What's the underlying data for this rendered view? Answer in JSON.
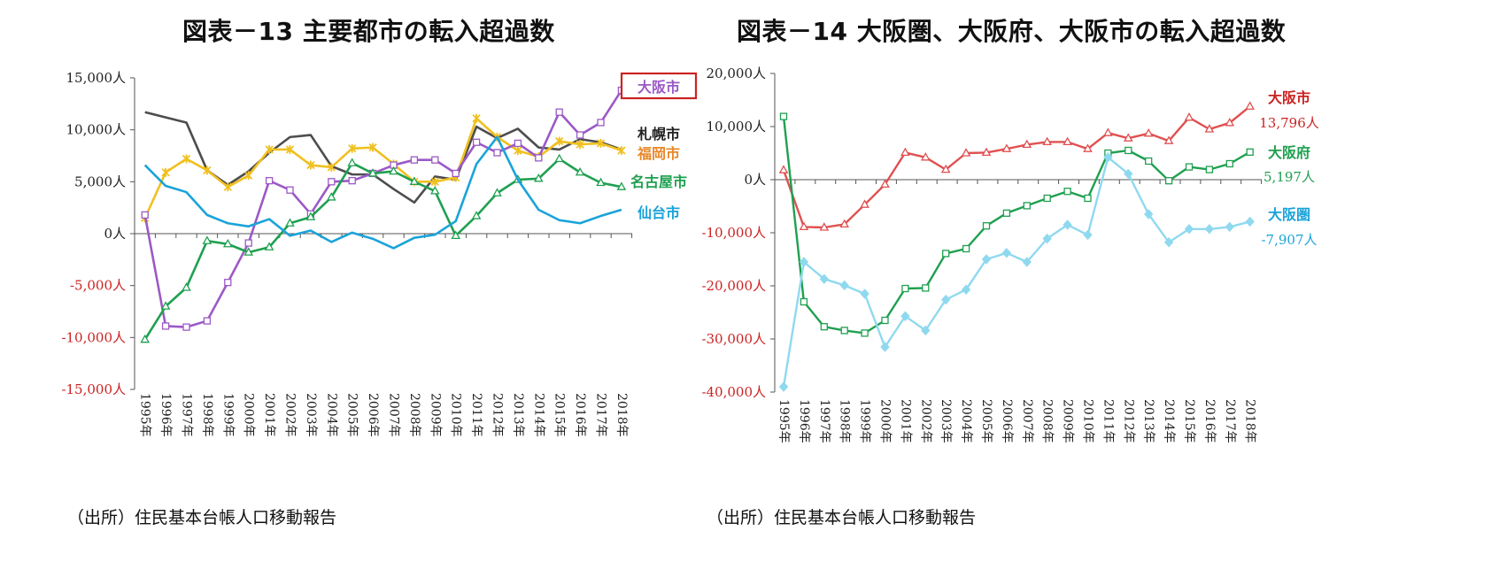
{
  "chart_data": [
    {
      "type": "line",
      "title": "図表－13 主要都市の転入超過数",
      "source": "（出所）住民基本台帳人口移動報告",
      "x": [
        "1995年",
        "1996年",
        "1997年",
        "1998年",
        "1999年",
        "2000年",
        "2001年",
        "2002年",
        "2003年",
        "2004年",
        "2005年",
        "2006年",
        "2007年",
        "2008年",
        "2009年",
        "2010年",
        "2011年",
        "2012年",
        "2013年",
        "2014年",
        "2015年",
        "2016年",
        "2017年",
        "2018年"
      ],
      "ylim": [
        -15000,
        15000
      ],
      "yticks": [
        {
          "value": 15000,
          "label": "15,000人",
          "color": "#222222"
        },
        {
          "value": 10000,
          "label": "10,000人",
          "color": "#222222"
        },
        {
          "value": 5000,
          "label": "5,000人",
          "color": "#222222"
        },
        {
          "value": 0,
          "label": "0人",
          "color": "#222222"
        },
        {
          "value": -5000,
          "label": "-5,000人",
          "color": "#cc2222"
        },
        {
          "value": -10000,
          "label": "-10,000人",
          "color": "#cc2222"
        },
        {
          "value": -15000,
          "label": "-15,000人",
          "color": "#cc2222"
        }
      ],
      "grid": false,
      "series": [
        {
          "name": "札幌市",
          "color": "#4d4d4d",
          "marker": "none",
          "values": [
            11700,
            11200,
            10700,
            6100,
            4700,
            6000,
            7800,
            9300,
            9500,
            6500,
            5700,
            5700,
            4300,
            3000,
            5500,
            5200,
            10300,
            9200,
            10100,
            8300,
            8100,
            9100,
            8800,
            8100
          ]
        },
        {
          "name": "福岡市",
          "color": "#f0c020",
          "marker": "star",
          "values": [
            1500,
            5900,
            7200,
            6100,
            4500,
            5600,
            8100,
            8100,
            6600,
            6400,
            8200,
            8300,
            6700,
            5000,
            5000,
            5400,
            11100,
            9300,
            8000,
            7400,
            8900,
            8600,
            8700,
            8000
          ]
        },
        {
          "name": "大阪市",
          "color": "#9b59c6",
          "marker": "square",
          "values": [
            1800,
            -8900,
            -9000,
            -8400,
            -4700,
            -900,
            5100,
            4200,
            1900,
            5000,
            5100,
            5800,
            6600,
            7100,
            7100,
            5800,
            8800,
            7800,
            8700,
            7300,
            11700,
            9500,
            10700,
            13800
          ]
        },
        {
          "name": "名古屋市",
          "color": "#1fa050",
          "marker": "triangle",
          "values": [
            -10200,
            -7000,
            -5200,
            -700,
            -1000,
            -1800,
            -1300,
            1000,
            1600,
            3500,
            6800,
            5800,
            6000,
            5000,
            4100,
            -200,
            1700,
            3900,
            5200,
            5300,
            7200,
            5900,
            4900,
            4500
          ]
        },
        {
          "name": "仙台市",
          "color": "#1aa3d9",
          "marker": "none",
          "values": [
            6600,
            4600,
            4000,
            1800,
            1000,
            700,
            1400,
            -200,
            300,
            -800,
            100,
            -500,
            -1400,
            -400,
            -100,
            1200,
            6700,
            9300,
            5200,
            2300,
            1300,
            1000,
            1700,
            2300
          ]
        }
      ],
      "legend_labels": [
        {
          "text": "大阪市",
          "color": "#9b59c6",
          "boxed": true
        },
        {
          "text": "札幌市",
          "color": "#222222",
          "boxed": false
        },
        {
          "text": "福岡市",
          "color": "#e8882a",
          "boxed": false
        },
        {
          "text": "名古屋市",
          "color": "#1fa050",
          "boxed": false
        },
        {
          "text": "仙台市",
          "color": "#1aa3d9",
          "boxed": false
        }
      ],
      "legend_box_color": "#cc2222"
    },
    {
      "type": "line",
      "title": "図表－14 大阪圏、大阪府、大阪市の転入超過数",
      "source": "（出所）住民基本台帳人口移動報告",
      "x": [
        "1995年",
        "1996年",
        "1997年",
        "1998年",
        "1999年",
        "2000年",
        "2001年",
        "2002年",
        "2003年",
        "2004年",
        "2005年",
        "2006年",
        "2007年",
        "2008年",
        "2009年",
        "2010年",
        "2011年",
        "2012年",
        "2013年",
        "2014年",
        "2015年",
        "2016年",
        "2017年",
        "2018年"
      ],
      "ylim": [
        -40000,
        20000
      ],
      "yticks": [
        {
          "value": 20000,
          "label": "20,000人",
          "color": "#222222"
        },
        {
          "value": 10000,
          "label": "10,000人",
          "color": "#222222"
        },
        {
          "value": 0,
          "label": "0人",
          "color": "#222222"
        },
        {
          "value": -10000,
          "label": "-10,000人",
          "color": "#cc2222"
        },
        {
          "value": -20000,
          "label": "-20,000人",
          "color": "#cc2222"
        },
        {
          "value": -30000,
          "label": "-30,000人",
          "color": "#cc2222"
        },
        {
          "value": -40000,
          "label": "-40,000人",
          "color": "#cc2222"
        }
      ],
      "grid": false,
      "series": [
        {
          "name": "大阪市",
          "color": "#e05050",
          "marker": "triangle",
          "values": [
            1800,
            -8900,
            -9000,
            -8400,
            -4700,
            -900,
            5100,
            4200,
            1900,
            5000,
            5100,
            5800,
            6600,
            7100,
            7100,
            5800,
            8800,
            7800,
            8700,
            7300,
            11700,
            9500,
            10700,
            13796
          ]
        },
        {
          "name": "大阪府",
          "color": "#1fa050",
          "marker": "square",
          "values": [
            11900,
            -23000,
            -27700,
            -28400,
            -28900,
            -26500,
            -20500,
            -20400,
            -13900,
            -13000,
            -8700,
            -6300,
            -4900,
            -3500,
            -2200,
            -3500,
            5000,
            5500,
            3500,
            -200,
            2400,
            1900,
            3000,
            5197
          ]
        },
        {
          "name": "大阪圏",
          "color": "#8fd9ef",
          "marker": "diamond",
          "values": [
            -39000,
            -15500,
            -18700,
            -19900,
            -21500,
            -31500,
            -25700,
            -28400,
            -22600,
            -20700,
            -15000,
            -13800,
            -15500,
            -11100,
            -8500,
            -10400,
            4200,
            1100,
            -6500,
            -11800,
            -9300,
            -9300,
            -8900,
            -7907
          ]
        }
      ],
      "legend_labels": [
        {
          "text": "大阪市",
          "color": "#cc2222",
          "value": "13,796人"
        },
        {
          "text": "大阪府",
          "color": "#1fa050",
          "value": "5,197人"
        },
        {
          "text": "大阪圏",
          "color": "#1aa3d9",
          "value": "-7,907人"
        }
      ]
    }
  ]
}
